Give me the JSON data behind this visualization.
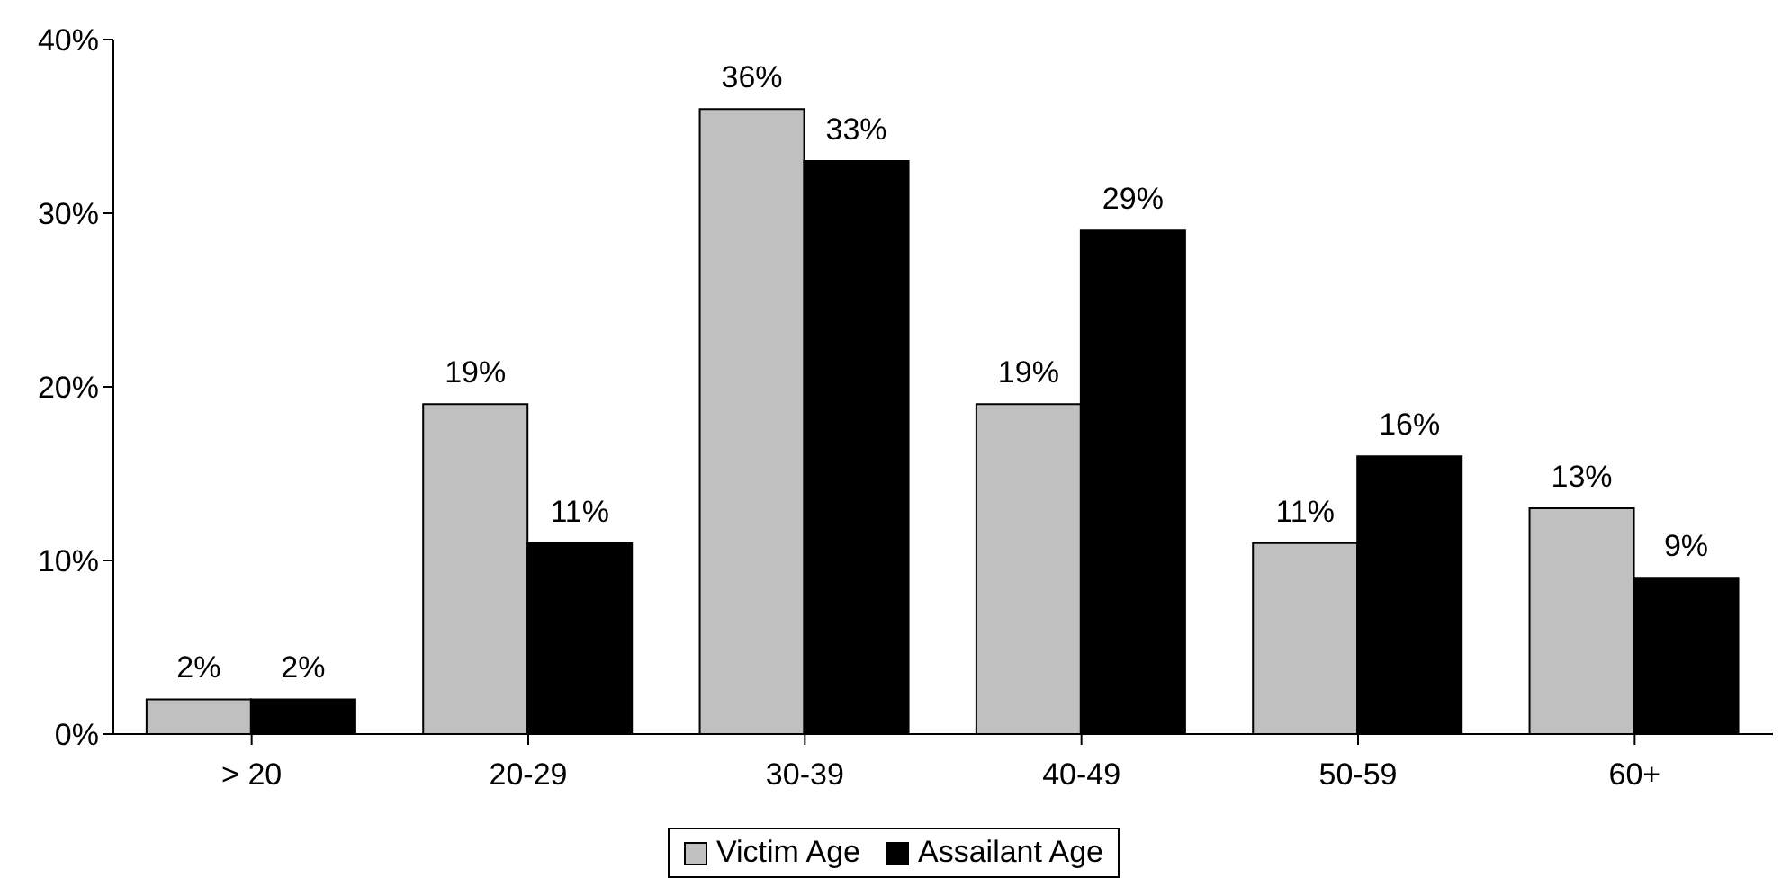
{
  "chart_data": {
    "type": "bar",
    "categories": [
      "> 20",
      "20-29",
      "30-39",
      "40-49",
      "50-59",
      "60+"
    ],
    "series": [
      {
        "name": "Victim Age",
        "color": "#c0c0c0",
        "values": [
          2,
          19,
          36,
          19,
          11,
          13
        ],
        "value_labels": [
          "2%",
          "19%",
          "36%",
          "19%",
          "11%",
          "13%"
        ]
      },
      {
        "name": "Assailant Age",
        "color": "#000000",
        "values": [
          2,
          11,
          33,
          29,
          16,
          9
        ],
        "value_labels": [
          "2%",
          "11%",
          "33%",
          "29%",
          "16%",
          "9%"
        ]
      }
    ],
    "ylim": [
      0,
      40
    ],
    "yticks": [
      {
        "value": 0,
        "label": "0%"
      },
      {
        "value": 10,
        "label": "10%"
      },
      {
        "value": 20,
        "label": "20%"
      },
      {
        "value": 30,
        "label": "30%"
      },
      {
        "value": 40,
        "label": "40%"
      }
    ],
    "grid": false,
    "legend": "bottom"
  }
}
